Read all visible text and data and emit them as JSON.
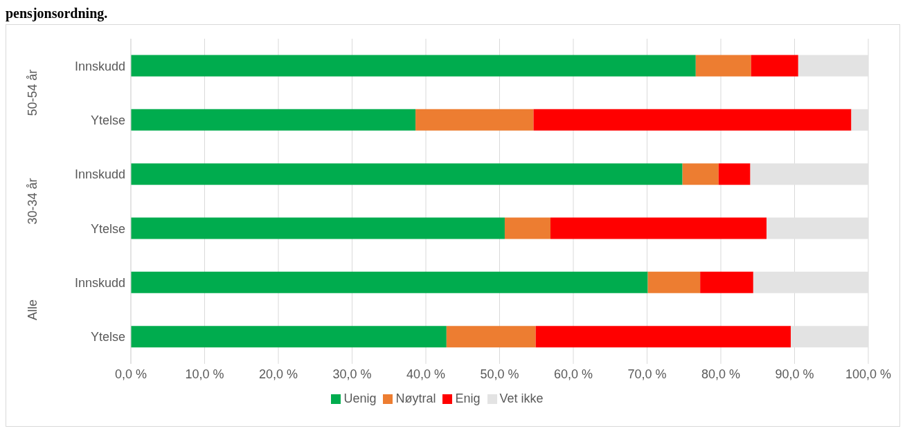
{
  "chart_data": {
    "type": "bar",
    "orientation": "horizontal",
    "stacked": true,
    "title": "pensjonsordning.",
    "categories": [
      "Innskudd",
      "Ytelse",
      "Innskudd",
      "Ytelse",
      "Innskudd",
      "Ytelse"
    ],
    "annotations": [
      "50-54 år",
      "30-34 år",
      "Alle"
    ],
    "series": [
      {
        "name": "Uenig",
        "color": "#00ac4e",
        "values": [
          76.6,
          38.6,
          74.8,
          50.7,
          70.1,
          42.8
        ]
      },
      {
        "name": "Nøytral",
        "color": "#ed7d31",
        "values": [
          7.5,
          16.0,
          4.9,
          6.2,
          7.1,
          12.1
        ]
      },
      {
        "name": "Enig",
        "color": "#ff0000",
        "values": [
          6.4,
          43.1,
          4.3,
          29.3,
          7.2,
          34.6
        ]
      },
      {
        "name": "Vet ikke",
        "color": "#e3e3e3",
        "values": [
          9.5,
          2.3,
          16.0,
          13.8,
          15.6,
          10.5
        ]
      }
    ],
    "xlim": [
      0,
      100
    ],
    "xticks": [
      {
        "value": 0,
        "label": "0,0 %"
      },
      {
        "value": 10,
        "label": "10,0 %"
      },
      {
        "value": 20,
        "label": "20,0 %"
      },
      {
        "value": 30,
        "label": "30,0 %"
      },
      {
        "value": 40,
        "label": "40,0 %"
      },
      {
        "value": 50,
        "label": "50,0 %"
      },
      {
        "value": 60,
        "label": "60,0 %"
      },
      {
        "value": 70,
        "label": "70,0 %"
      },
      {
        "value": 80,
        "label": "80,0 %"
      },
      {
        "value": 90,
        "label": "90,0 %"
      },
      {
        "value": 100,
        "label": "100,0 %"
      }
    ],
    "grid": "x",
    "legend": "bottom"
  }
}
